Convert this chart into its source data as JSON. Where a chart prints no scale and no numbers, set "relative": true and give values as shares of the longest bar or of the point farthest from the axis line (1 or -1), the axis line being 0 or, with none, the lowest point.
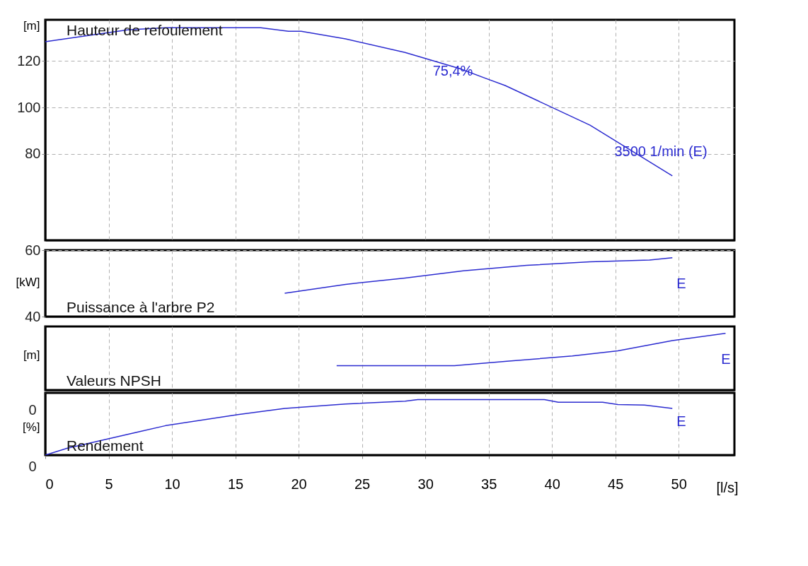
{
  "chart_data": [
    {
      "type": "line",
      "title": "Hauteur de refoulement",
      "ylabel": "[m]",
      "grid": true,
      "tick_labels": "y",
      "xlim": [
        0,
        54.4
      ],
      "xticks": [
        0,
        5,
        10,
        15,
        20,
        25,
        30,
        35,
        40,
        45,
        50
      ],
      "ylim": [
        43,
        137.6
      ],
      "yticks": [
        80,
        100,
        120
      ],
      "series": [
        {
          "color": "#2b2bd0",
          "x": [
            0,
            6.5,
            9.5,
            17,
            19.2,
            20.2,
            23.7,
            28.4,
            32.7,
            34.8,
            36.3,
            43,
            49.5
          ],
          "values": [
            128.2,
            133.3,
            134.2,
            134.2,
            132.7,
            132.7,
            129.4,
            123.6,
            116.7,
            112.4,
            109.4,
            92.4,
            70.6
          ]
        }
      ],
      "annotations": [
        "75,4%",
        "3500 1/min  (E)"
      ]
    },
    {
      "type": "line",
      "title": "Puissance à l'arbre P2",
      "ylabel": "[kW]",
      "grid": true,
      "tick_labels": "y",
      "xlim": [
        0,
        54.4
      ],
      "xticks": [
        0,
        5,
        10,
        15,
        20,
        25,
        30,
        35,
        40,
        45,
        50
      ],
      "ylim": [
        40,
        60
      ],
      "yticks": [
        40,
        60
      ],
      "series": [
        {
          "color": "#2b2bd0",
          "x": [
            18.9,
            23.7,
            28.4,
            33,
            38,
            43,
            47.7,
            49.5
          ],
          "values": [
            47.0,
            49.7,
            51.6,
            53.8,
            55.4,
            56.5,
            57.0,
            57.7
          ]
        }
      ],
      "annotations": [
        "E"
      ]
    },
    {
      "type": "line",
      "title": "Valeurs NPSH",
      "ylabel": "[m]",
      "grid": true,
      "tick_labels": false,
      "relative": true,
      "xlim": [
        0,
        54.4
      ],
      "xticks": [
        0,
        5,
        10,
        15,
        20,
        25,
        30,
        35,
        40,
        45,
        50
      ],
      "series": [
        {
          "color": "#2b2bd0",
          "x": [
            23.0,
            32.3,
            36.6,
            41.6,
            45.2,
            49.5,
            53.7
          ],
          "values": [
            0.43,
            0.43,
            0.51,
            0.6,
            0.69,
            0.87,
            1.0
          ]
        }
      ],
      "annotations": [
        "E"
      ]
    },
    {
      "type": "line",
      "title": "Rendement",
      "ylabel": "[%]",
      "xlabel": "[l/s]",
      "grid": true,
      "xlim": [
        0,
        54.4
      ],
      "xticks": [
        0,
        5,
        10,
        15,
        20,
        25,
        30,
        35,
        40,
        45,
        50
      ],
      "relative": true,
      "tick_labels": "x",
      "series": [
        {
          "color": "#2b2bd0",
          "x": [
            0,
            1.7,
            7.4,
            9.5,
            15.2,
            18.9,
            23.7,
            28.4,
            29.4,
            39.4,
            40.5,
            44,
            45.2,
            47.3,
            49.5
          ],
          "values": [
            0,
            0.12,
            0.42,
            0.53,
            0.73,
            0.84,
            0.92,
            0.97,
            1,
            1,
            0.95,
            0.95,
            0.91,
            0.9,
            0.84
          ]
        }
      ],
      "annotations": [
        "E",
        "0",
        "0"
      ]
    }
  ]
}
